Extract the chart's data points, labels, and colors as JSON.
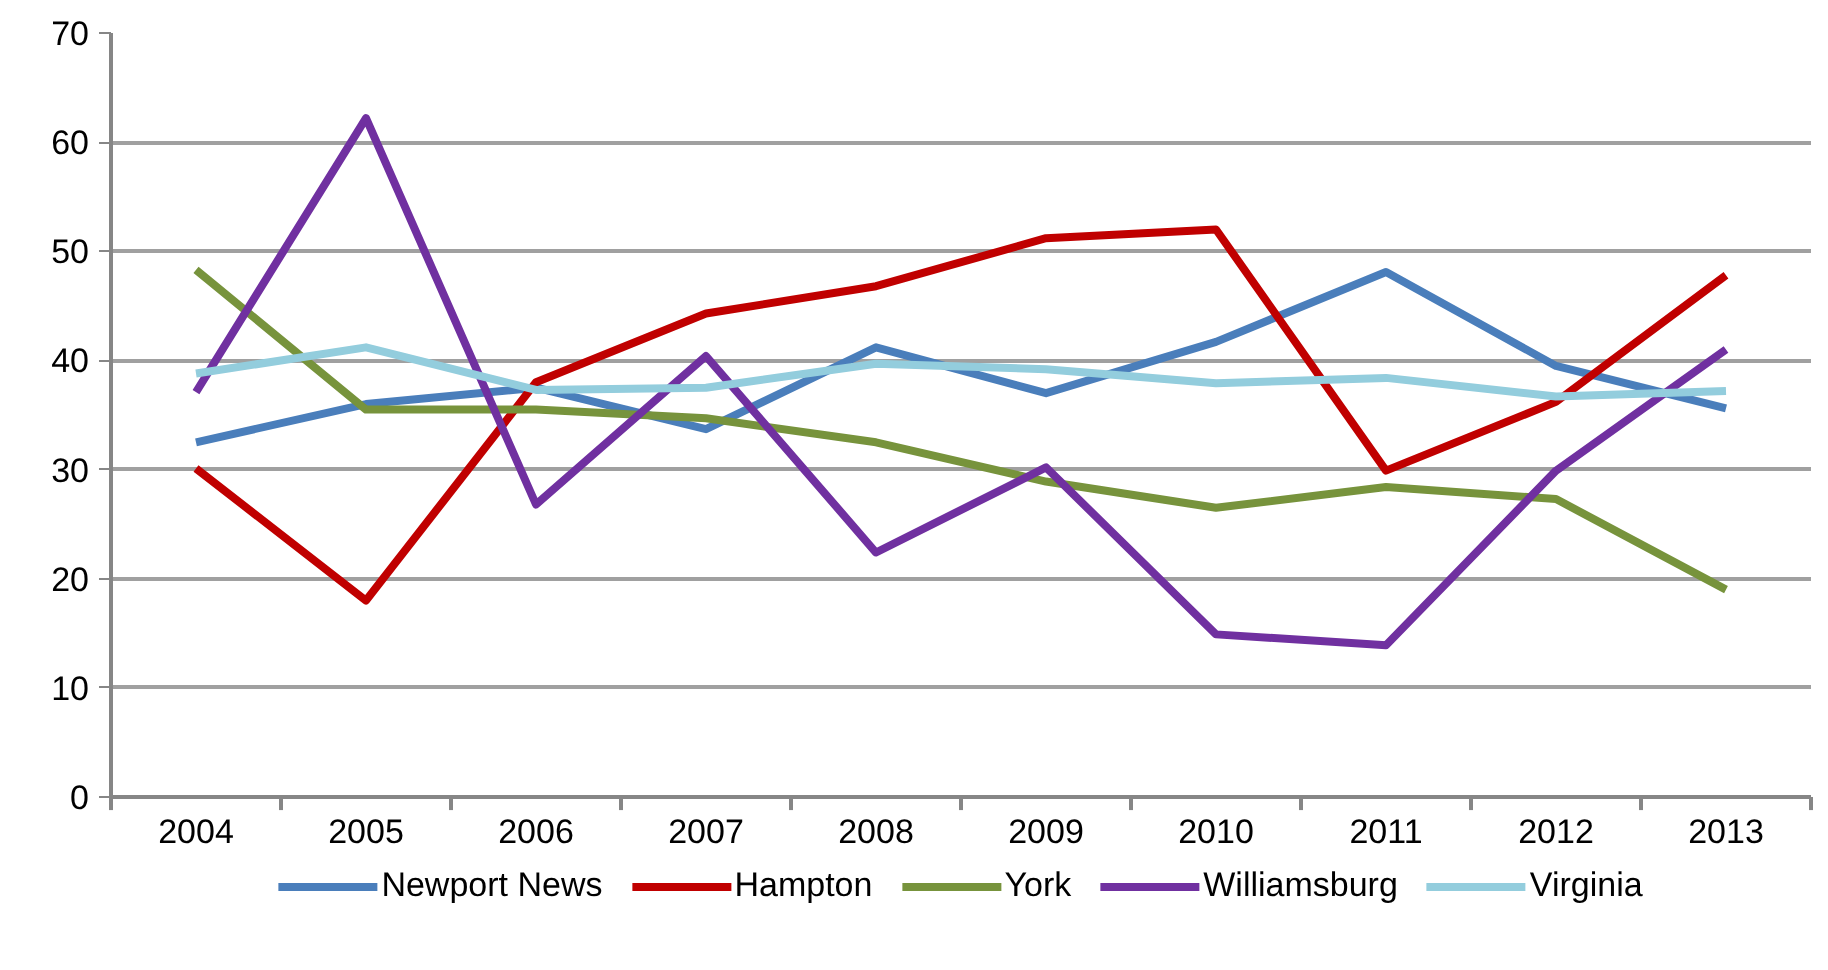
{
  "chart_data": {
    "type": "line",
    "categories": [
      "2004",
      "2005",
      "2006",
      "2007",
      "2008",
      "2009",
      "2010",
      "2011",
      "2012",
      "2013"
    ],
    "ylim": [
      0,
      70
    ],
    "yticks": [
      0,
      10,
      20,
      30,
      40,
      50,
      60,
      70
    ],
    "grid": "y",
    "legend": "bottom",
    "marker": "none",
    "line_style": "solid",
    "series": [
      {
        "name": "Newport News",
        "color": "#4a7ebb",
        "values": [
          32.5,
          36,
          37.5,
          33.7,
          41.2,
          37,
          41.7,
          48.1,
          39.5,
          35.6
        ]
      },
      {
        "name": "Hampton",
        "color": "#c00000",
        "values": [
          30.1,
          18,
          38,
          44.3,
          46.8,
          51.2,
          52,
          29.9,
          36.2,
          47.8
        ]
      },
      {
        "name": "York",
        "color": "#77933c",
        "values": [
          48.3,
          35.5,
          35.5,
          34.7,
          32.5,
          28.9,
          26.5,
          28.4,
          27.3,
          19
        ]
      },
      {
        "name": "Williamsburg",
        "color": "#7030a0",
        "values": [
          37.1,
          62.2,
          26.8,
          40.4,
          22.4,
          30.2,
          14.9,
          13.9,
          29.9,
          41
        ]
      },
      {
        "name": "Virginia",
        "color": "#93cddd",
        "values": [
          38.8,
          41.2,
          37.3,
          37.5,
          39.7,
          39.2,
          37.9,
          38.4,
          36.7,
          37.2
        ]
      }
    ]
  }
}
